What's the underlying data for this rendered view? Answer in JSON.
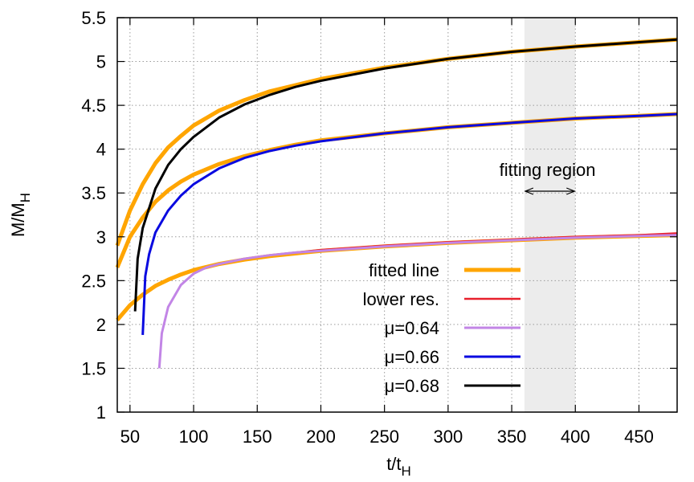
{
  "chart_data": {
    "type": "line",
    "xlabel": "t/t",
    "xlabel_sub": "H",
    "ylabel": "M/M",
    "ylabel_sub": "H",
    "xlim": [
      40,
      480
    ],
    "ylim": [
      1,
      5.5
    ],
    "xticks": [
      50,
      100,
      150,
      200,
      250,
      300,
      350,
      400,
      450
    ],
    "yticks": [
      1,
      1.5,
      2,
      2.5,
      3,
      3.5,
      4,
      4.5,
      5,
      5.5
    ],
    "xtick_labels": [
      "50",
      "100",
      "150",
      "200",
      "250",
      "300",
      "350",
      "400",
      "450"
    ],
    "ytick_labels": [
      "1",
      "1.5",
      "2",
      "2.5",
      "3",
      "3.5",
      "4",
      "4.5",
      "5",
      "5.5"
    ],
    "grid": true,
    "legend_position": "bottom-center",
    "fitting_region": {
      "x": [
        360,
        400
      ],
      "label": "fitting region",
      "color": "#ececec"
    },
    "series": [
      {
        "name": "fitted line",
        "color": "#ffa500",
        "width": 5,
        "role": "fit",
        "x": [
          40,
          50,
          60,
          70,
          80,
          90,
          100,
          120,
          140,
          160,
          180,
          200,
          250,
          300,
          350,
          400,
          450,
          480
        ],
        "y": [
          2.9,
          3.3,
          3.6,
          3.84,
          4.02,
          4.15,
          4.27,
          4.44,
          4.56,
          4.66,
          4.73,
          4.8,
          4.93,
          5.03,
          5.11,
          5.17,
          5.22,
          5.25
        ]
      },
      {
        "name": "",
        "color": "#ffa500",
        "width": 5,
        "role": "fit",
        "x": [
          40,
          50,
          60,
          70,
          80,
          90,
          100,
          120,
          140,
          160,
          180,
          200,
          250,
          300,
          350,
          400,
          450,
          480
        ],
        "y": [
          2.65,
          3.0,
          3.22,
          3.4,
          3.53,
          3.63,
          3.71,
          3.83,
          3.92,
          3.99,
          4.05,
          4.1,
          4.18,
          4.25,
          4.3,
          4.35,
          4.38,
          4.4
        ]
      },
      {
        "name": "",
        "color": "#ffa500",
        "width": 5,
        "role": "fit",
        "x": [
          40,
          50,
          60,
          70,
          80,
          90,
          100,
          120,
          140,
          160,
          180,
          200,
          250,
          300,
          350,
          400,
          450,
          480
        ],
        "y": [
          2.05,
          2.22,
          2.34,
          2.44,
          2.51,
          2.57,
          2.62,
          2.69,
          2.74,
          2.78,
          2.81,
          2.84,
          2.89,
          2.93,
          2.96,
          2.99,
          3.01,
          3.02
        ]
      },
      {
        "name": "lower res.",
        "color": "#e8202c",
        "width": 2.5,
        "role": "sim",
        "x": [
          140,
          160,
          180,
          200,
          250,
          300,
          350,
          400,
          450,
          480
        ],
        "y": [
          2.75,
          2.79,
          2.82,
          2.85,
          2.9,
          2.94,
          2.97,
          3.0,
          3.02,
          3.04
        ]
      },
      {
        "name": "μ=0.64",
        "color": "#c285e6",
        "width": 3,
        "role": "sim",
        "x": [
          73,
          75,
          80,
          90,
          100,
          110,
          120,
          140,
          160,
          180,
          200,
          250,
          300,
          350,
          400,
          450,
          480
        ],
        "y": [
          1.5,
          1.9,
          2.2,
          2.45,
          2.58,
          2.65,
          2.69,
          2.75,
          2.79,
          2.82,
          2.84,
          2.89,
          2.93,
          2.96,
          2.99,
          3.01,
          3.02
        ]
      },
      {
        "name": "μ=0.66",
        "color": "#0a0ae0",
        "width": 3,
        "role": "sim",
        "x": [
          60,
          62,
          65,
          70,
          80,
          90,
          100,
          120,
          140,
          160,
          180,
          200,
          250,
          300,
          350,
          400,
          450,
          480
        ],
        "y": [
          1.88,
          2.55,
          2.8,
          3.05,
          3.3,
          3.47,
          3.6,
          3.78,
          3.9,
          3.98,
          4.04,
          4.09,
          4.18,
          4.25,
          4.3,
          4.35,
          4.38,
          4.4
        ]
      },
      {
        "name": "μ=0.68",
        "color": "#000000",
        "width": 3,
        "role": "sim",
        "x": [
          54,
          56,
          60,
          70,
          80,
          90,
          100,
          120,
          140,
          160,
          180,
          200,
          250,
          300,
          350,
          400,
          450,
          480
        ],
        "y": [
          2.15,
          2.75,
          3.1,
          3.55,
          3.82,
          4.0,
          4.14,
          4.36,
          4.51,
          4.62,
          4.71,
          4.78,
          4.92,
          5.03,
          5.11,
          5.17,
          5.22,
          5.25
        ]
      }
    ]
  }
}
